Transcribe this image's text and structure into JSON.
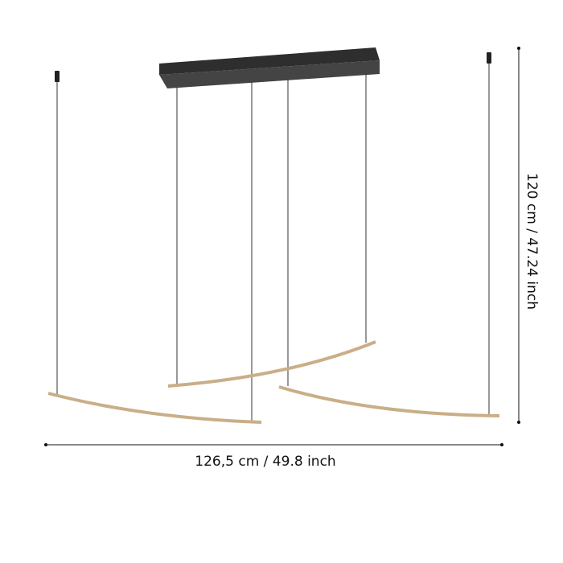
{
  "dimensions": {
    "width_label": "126,5 cm / 49.8 inch",
    "height_label": "120 cm / 47.24 inch"
  },
  "colors": {
    "canopy_top": "#2e2e2e",
    "canopy_front": "#444444",
    "bar": "#c9ae87",
    "wire": "#333333",
    "dimension_line": "#111111"
  }
}
